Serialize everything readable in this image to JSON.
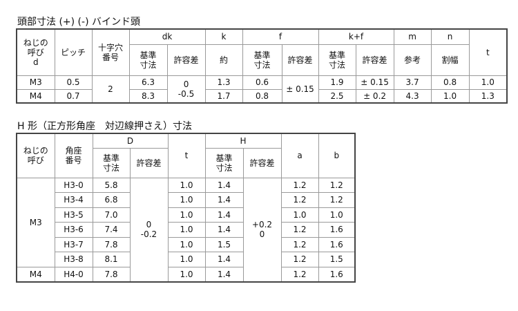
{
  "table1": {
    "title": "頭部寸法 (+) (-) バインド頭",
    "headers": {
      "nominal": "ねじの\n呼び\nd",
      "pitch": "ピッチ",
      "cross": "十字穴\n番号",
      "dk": "dk",
      "k": "k",
      "f": "f",
      "kf": "k+f",
      "m": "m",
      "n": "n",
      "t": "t",
      "basic": "基準\n寸法",
      "tol": "許容差",
      "approx": "約",
      "ref": "参考",
      "slot": "割幅"
    },
    "rows": [
      {
        "d": "M3",
        "pitch": "0.5",
        "dk": "6.3",
        "k": "1.3",
        "f": "0.6",
        "kf": "1.9",
        "kf_tol": "± 0.15",
        "m": "3.7",
        "n": "0.8",
        "t": "1.0"
      },
      {
        "d": "M4",
        "pitch": "0.7",
        "dk": "8.3",
        "k": "1.7",
        "f": "0.8",
        "kf": "2.5",
        "kf_tol": "± 0.2",
        "m": "4.3",
        "n": "1.0",
        "t": "1.3"
      }
    ],
    "cross_shared": "2",
    "dk_tol_shared": "0\n-0.5",
    "f_tol_shared": "± 0.15"
  },
  "table2": {
    "title": "H 形（正方形角座　対辺線押さえ）寸法",
    "headers": {
      "nominal": "ねじの\n呼び",
      "seat": "角座\n番号",
      "D": "D",
      "t": "t",
      "H": "H",
      "a": "a",
      "b": "b",
      "basic": "基準\n寸法",
      "tol": "許容差"
    },
    "groups": [
      "M3",
      "M4"
    ],
    "rows": [
      {
        "seat": "H3-0",
        "D": "5.8",
        "t": "1.0",
        "H": "1.4",
        "a": "1.2",
        "b": "1.2"
      },
      {
        "seat": "H3-4",
        "D": "6.8",
        "t": "1.0",
        "H": "1.4",
        "a": "1.2",
        "b": "1.2"
      },
      {
        "seat": "H3-5",
        "D": "7.0",
        "t": "1.0",
        "H": "1.4",
        "a": "1.0",
        "b": "1.0"
      },
      {
        "seat": "H3-6",
        "D": "7.4",
        "t": "1.0",
        "H": "1.4",
        "a": "1.2",
        "b": "1.6"
      },
      {
        "seat": "H3-7",
        "D": "7.8",
        "t": "1.0",
        "H": "1.5",
        "a": "1.2",
        "b": "1.6"
      },
      {
        "seat": "H3-8",
        "D": "8.1",
        "t": "1.0",
        "H": "1.4",
        "a": "1.2",
        "b": "1.5"
      },
      {
        "seat": "H4-0",
        "D": "7.8",
        "t": "1.0",
        "H": "1.4",
        "a": "1.2",
        "b": "1.6"
      }
    ],
    "D_tol_shared": "0\n-0.2",
    "H_tol_shared": "+0.2\n0"
  }
}
